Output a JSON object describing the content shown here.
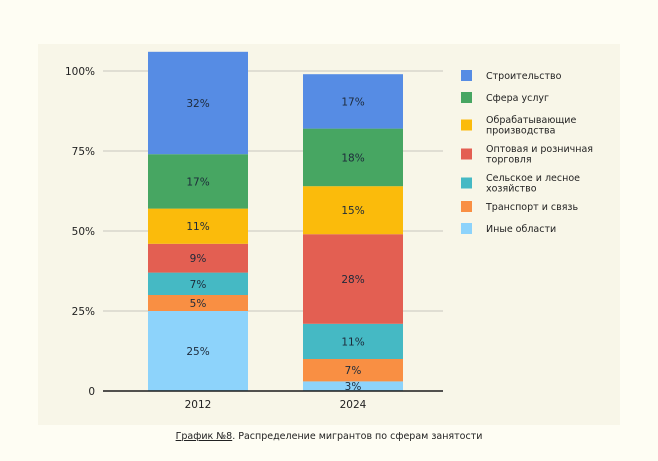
{
  "chart_data": {
    "type": "bar",
    "stacked": true,
    "title": "",
    "xlabel": "",
    "ylabel": "",
    "categories": [
      "2012",
      "2024"
    ],
    "ylim": [
      0,
      100
    ],
    "yticks": [
      0,
      25,
      50,
      75,
      100
    ],
    "ytick_labels": [
      "0",
      "25%",
      "50%",
      "75%",
      "100%"
    ],
    "grid": true,
    "legend_position": "right",
    "series": [
      {
        "name": "Иные области",
        "color": "#8dd3fb",
        "values": [
          25,
          3
        ]
      },
      {
        "name": "Транспорт и связь",
        "color": "#f98f43",
        "values": [
          5,
          7
        ]
      },
      {
        "name": "Сельское и лесное хозяйство",
        "color": "#45b9c4",
        "values": [
          7,
          11
        ]
      },
      {
        "name": "Оптовая и розничная торговля",
        "color": "#e35f52",
        "values": [
          9,
          28
        ]
      },
      {
        "name": "Обрабатывающие производства",
        "color": "#fbbb0b",
        "values": [
          11,
          15
        ]
      },
      {
        "name": "Сфера услуг",
        "color": "#47a662",
        "values": [
          17,
          18
        ]
      },
      {
        "name": "Строительство",
        "color": "#568ce4",
        "values": [
          32,
          17
        ]
      }
    ],
    "data_labels": [
      [
        "25%",
        "5%",
        "7%",
        "9%",
        "11%",
        "17%",
        "32%"
      ],
      [
        "3%",
        "7%",
        "11%",
        "28%",
        "15%",
        "18%",
        "17%"
      ]
    ],
    "legend": [
      {
        "label_lines": [
          "Строительство"
        ],
        "color": "#568ce4"
      },
      {
        "label_lines": [
          "Сфера услуг"
        ],
        "color": "#47a662"
      },
      {
        "label_lines": [
          "Обрабатывающие",
          "производства"
        ],
        "color": "#fbbb0b"
      },
      {
        "label_lines": [
          "Оптовая и розничная",
          "торговля"
        ],
        "color": "#e35f52"
      },
      {
        "label_lines": [
          "Сельское и лесное",
          "хозяйство"
        ],
        "color": "#45b9c4"
      },
      {
        "label_lines": [
          "Транспорт и связь"
        ],
        "color": "#f98f43"
      },
      {
        "label_lines": [
          "Иные области"
        ],
        "color": "#8dd3fb"
      }
    ]
  },
  "caption": {
    "prefix": "График №8",
    "text": ". Распределение мигрантов по сферам занятости"
  }
}
